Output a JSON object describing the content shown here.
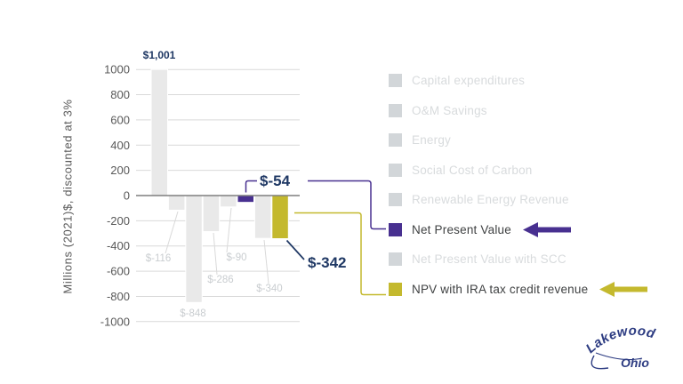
{
  "page": {
    "background": "#ffffff"
  },
  "chart_data": {
    "type": "bar",
    "title": "",
    "ylabel": "Millions (2021)$, discounted at 3%",
    "ylim": [
      -1000,
      1000
    ],
    "ytick_step": 200,
    "yticks": [
      "1000",
      "800",
      "600",
      "400",
      "200",
      "0",
      "-200",
      "-400",
      "-600",
      "-800",
      "-1000"
    ],
    "grid": true,
    "legend_position": "right",
    "categories": [
      "Capital expenditures",
      "O&M Savings",
      "Energy",
      "Social Cost of Carbon",
      "Renewable Energy Revenue",
      "Net Present Value",
      "Net Present Value with SCC",
      "NPV with IRA tax credit revenue"
    ],
    "values": [
      1001,
      -116,
      -848,
      -286,
      -90,
      -54,
      -340,
      -342
    ],
    "bar_labels": [
      "$1,001",
      "$-116",
      "$-848",
      "$-286",
      "$-90",
      "$-54",
      "$-340",
      "$-342"
    ],
    "bar_colors": [
      "#e9e9e9",
      "#e9e9e9",
      "#e9e9e9",
      "#e9e9e9",
      "#e9e9e9",
      "#483090",
      "#e9e9e9",
      "#c4b92e"
    ],
    "highlighted": [
      {
        "label": "$-54",
        "series": "Net Present Value",
        "color": "#483090"
      },
      {
        "label": "$-342",
        "series": "NPV with IRA tax credit revenue",
        "color": "#c4b92e"
      }
    ]
  },
  "legend": {
    "items": [
      {
        "label": "Capital expenditures",
        "swatch": "#d2d6d9",
        "muted": true,
        "arrow": null
      },
      {
        "label": "O&M Savings",
        "swatch": "#d2d6d9",
        "muted": true,
        "arrow": null
      },
      {
        "label": "Energy",
        "swatch": "#d2d6d9",
        "muted": true,
        "arrow": null
      },
      {
        "label": "Social Cost of Carbon",
        "swatch": "#d2d6d9",
        "muted": true,
        "arrow": null
      },
      {
        "label": "Renewable Energy Revenue",
        "swatch": "#d2d6d9",
        "muted": true,
        "arrow": null
      },
      {
        "label": "Net Present Value",
        "swatch": "#483090",
        "muted": false,
        "arrow": "#483090"
      },
      {
        "label": "Net Present Value with SCC",
        "swatch": "#d2d6d9",
        "muted": true,
        "arrow": null
      },
      {
        "label": "NPV with IRA tax credit revenue",
        "swatch": "#c4b92e",
        "muted": false,
        "arrow": "#c4b92e"
      }
    ]
  },
  "colors": {
    "purple": "#483090",
    "yellow": "#c4b92e",
    "navy": "#1f3864",
    "gridline": "#d9d9d9",
    "axis_line": "#7f7f7f",
    "tick_text": "#595959",
    "muted_label": "#c9cdd0",
    "legend_muted_text": "#d8dbdd",
    "legend_active_text": "#3f4142",
    "logo_navy": "#2d3c82"
  },
  "logo": {
    "line1": "Lakewood",
    "line2": "Ohio"
  }
}
